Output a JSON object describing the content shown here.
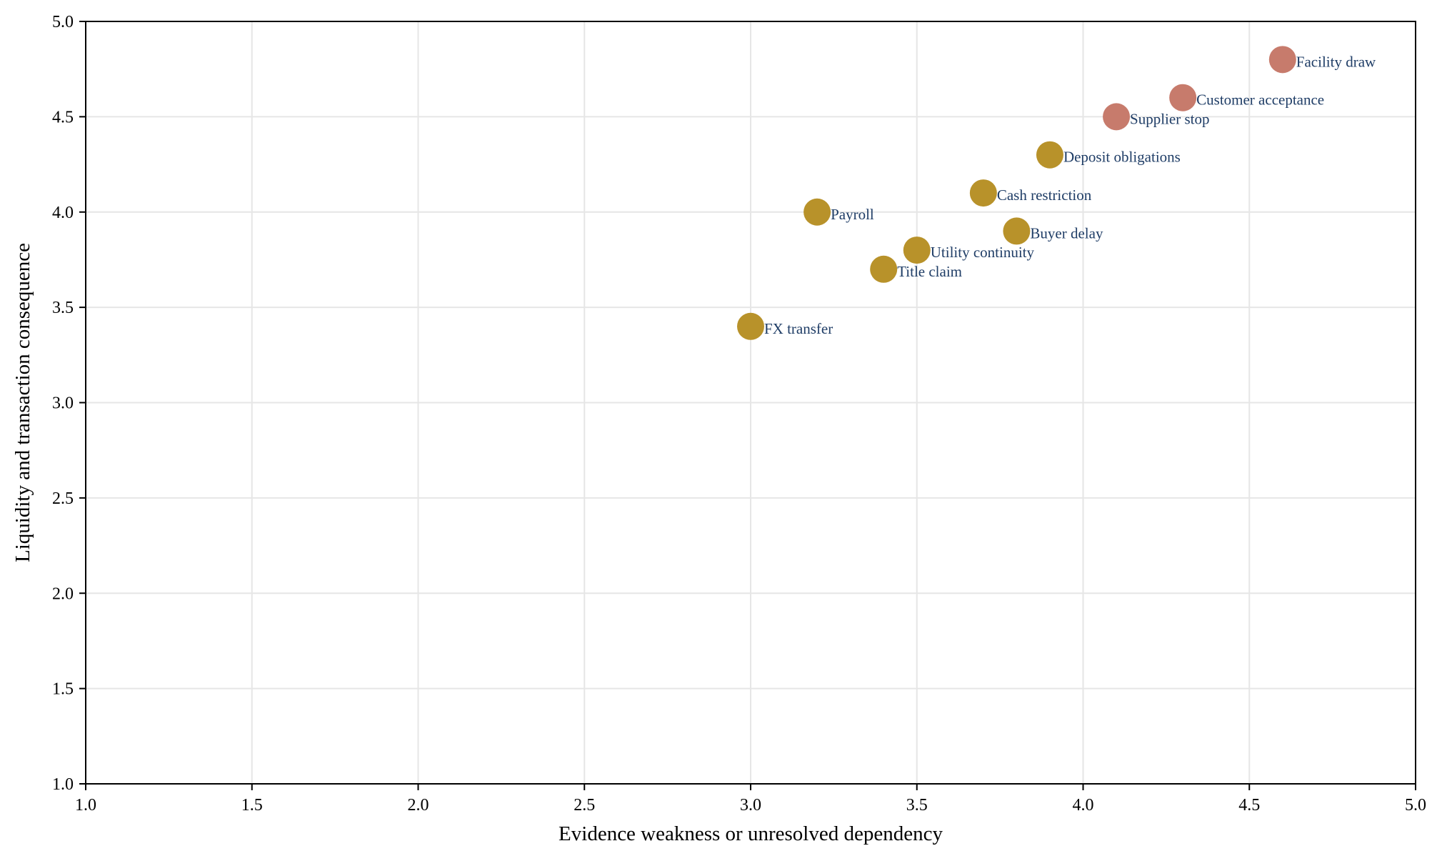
{
  "chart_data": {
    "type": "scatter",
    "xlabel": "Evidence weakness or unresolved dependency",
    "ylabel": "Liquidity and transaction consequence",
    "xlim": [
      1.0,
      5.0
    ],
    "ylim": [
      1.0,
      5.0
    ],
    "xticks": [
      "1.0",
      "1.5",
      "2.0",
      "2.5",
      "3.0",
      "3.5",
      "4.0",
      "4.5",
      "5.0"
    ],
    "yticks": [
      "1.0",
      "1.5",
      "2.0",
      "2.5",
      "3.0",
      "3.5",
      "4.0",
      "4.5",
      "5.0"
    ],
    "grid": true,
    "legend": null,
    "colors": {
      "amber": "#b8922a",
      "red": "#c77b6c",
      "label": "#1f3d66"
    },
    "points": [
      {
        "label": "Facility draw",
        "x": 4.6,
        "y": 4.8,
        "color": "red"
      },
      {
        "label": "Customer acceptance",
        "x": 4.3,
        "y": 4.6,
        "color": "red"
      },
      {
        "label": "Supplier stop",
        "x": 4.1,
        "y": 4.5,
        "color": "red"
      },
      {
        "label": "Deposit obligations",
        "x": 3.9,
        "y": 4.3,
        "color": "amber"
      },
      {
        "label": "Cash restriction",
        "x": 3.7,
        "y": 4.1,
        "color": "amber"
      },
      {
        "label": "Payroll",
        "x": 3.2,
        "y": 4.0,
        "color": "amber"
      },
      {
        "label": "Buyer delay",
        "x": 3.8,
        "y": 3.9,
        "color": "amber"
      },
      {
        "label": "Utility continuity",
        "x": 3.5,
        "y": 3.8,
        "color": "amber"
      },
      {
        "label": "Title claim",
        "x": 3.4,
        "y": 3.7,
        "color": "amber"
      },
      {
        "label": "FX transfer",
        "x": 3.0,
        "y": 3.4,
        "color": "amber"
      }
    ]
  }
}
